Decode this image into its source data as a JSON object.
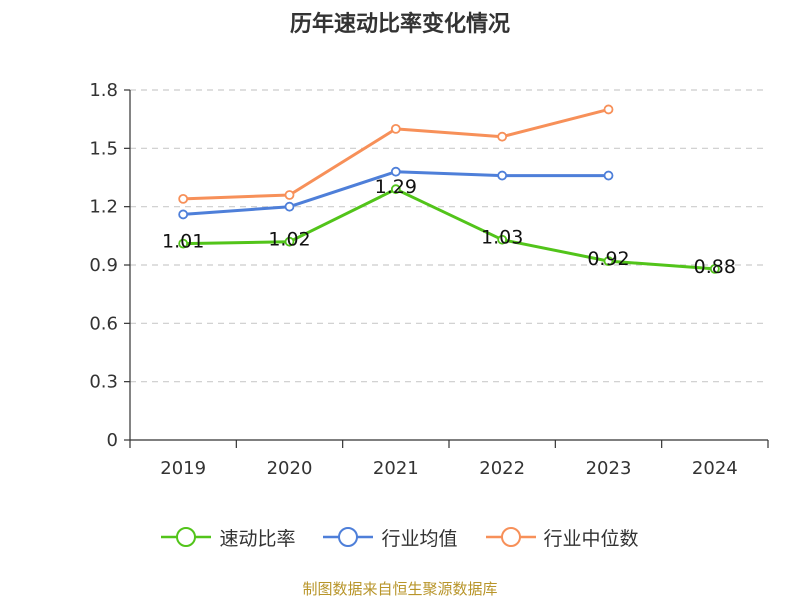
{
  "chart_data": {
    "type": "line",
    "title": "历年速动比率变化情况",
    "categories": [
      "2019",
      "2020",
      "2021",
      "2022",
      "2023",
      "2024"
    ],
    "ylim": [
      0,
      1.8
    ],
    "yticks": [
      "0",
      "0.3",
      "0.6",
      "0.9",
      "1.2",
      "1.5",
      "1.8"
    ],
    "grid": true,
    "legend_position": "bottom",
    "series": [
      {
        "name": "速动比率",
        "color": "#52c41a",
        "values": [
          1.01,
          1.02,
          1.29,
          1.03,
          0.92,
          0.88
        ],
        "labels": [
          "1.01",
          "1.02",
          "1.29",
          "1.03",
          "0.92",
          "0.88"
        ]
      },
      {
        "name": "行业均值",
        "color": "#4e7fd9",
        "values": [
          1.16,
          1.2,
          1.38,
          1.36,
          1.36,
          null
        ]
      },
      {
        "name": "行业中位数",
        "color": "#f79059",
        "values": [
          1.24,
          1.26,
          1.6,
          1.56,
          1.7,
          null
        ]
      }
    ]
  },
  "source_text": "制图数据来自恒生聚源数据库"
}
